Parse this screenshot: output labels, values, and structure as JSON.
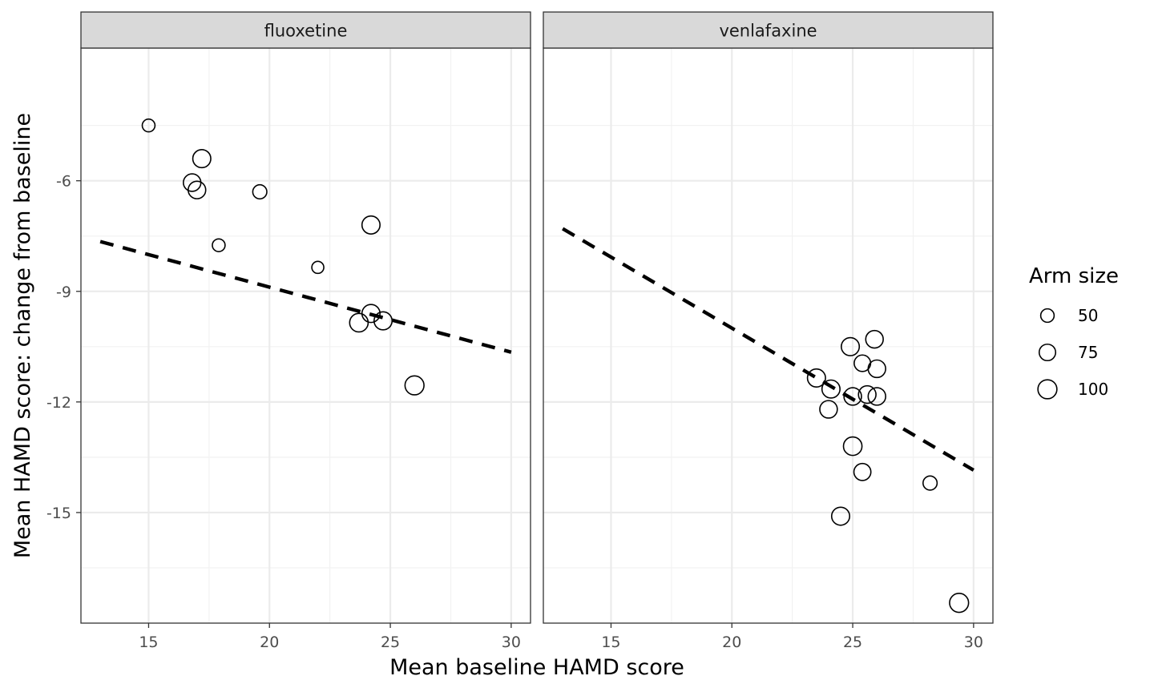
{
  "chart_data": {
    "type": "scatter",
    "xlabel": "Mean baseline HAMD score",
    "ylabel": "Mean HAMD score: change from baseline",
    "xlim": [
      12.2,
      30.8
    ],
    "ylim": [
      -18.0,
      -2.4
    ],
    "x_ticks": [
      15,
      20,
      25,
      30
    ],
    "y_ticks": [
      -6,
      -9,
      -12,
      -15
    ],
    "grid": true,
    "colors": {
      "panel_border": "#333333",
      "strip_fill": "#d9d9d9",
      "grid_major": "#ebebeb",
      "grid_minor": "#f2f2f2",
      "point_stroke": "#000000",
      "trend_line": "#000000"
    },
    "panels": [
      {
        "strip": "fluoxetine",
        "points": [
          {
            "x": 15.0,
            "y": -4.5,
            "size": 45
          },
          {
            "x": 17.2,
            "y": -5.4,
            "size": 90
          },
          {
            "x": 16.8,
            "y": -6.05,
            "size": 85
          },
          {
            "x": 17.0,
            "y": -6.25,
            "size": 85
          },
          {
            "x": 19.6,
            "y": -6.3,
            "size": 55
          },
          {
            "x": 17.9,
            "y": -7.75,
            "size": 45
          },
          {
            "x": 24.2,
            "y": -7.2,
            "size": 90
          },
          {
            "x": 22.0,
            "y": -8.35,
            "size": 40
          },
          {
            "x": 24.2,
            "y": -9.6,
            "size": 90
          },
          {
            "x": 23.7,
            "y": -9.85,
            "size": 95
          },
          {
            "x": 24.7,
            "y": -9.8,
            "size": 90
          },
          {
            "x": 26.0,
            "y": -11.55,
            "size": 100
          }
        ],
        "trend": {
          "x": [
            13,
            30
          ],
          "y": [
            -7.65,
            -10.65
          ]
        }
      },
      {
        "strip": "venlafaxine",
        "points": [
          {
            "x": 25.9,
            "y": -10.3,
            "size": 85
          },
          {
            "x": 24.9,
            "y": -10.5,
            "size": 90
          },
          {
            "x": 25.4,
            "y": -10.95,
            "size": 75
          },
          {
            "x": 26.0,
            "y": -11.1,
            "size": 85
          },
          {
            "x": 23.5,
            "y": -11.35,
            "size": 90
          },
          {
            "x": 24.1,
            "y": -11.65,
            "size": 90
          },
          {
            "x": 24.0,
            "y": -12.2,
            "size": 85
          },
          {
            "x": 25.0,
            "y": -11.85,
            "size": 85
          },
          {
            "x": 25.6,
            "y": -11.8,
            "size": 85
          },
          {
            "x": 26.0,
            "y": -11.85,
            "size": 85
          },
          {
            "x": 25.0,
            "y": -13.2,
            "size": 95
          },
          {
            "x": 25.4,
            "y": -13.9,
            "size": 80
          },
          {
            "x": 24.5,
            "y": -15.1,
            "size": 90
          },
          {
            "x": 28.2,
            "y": -14.2,
            "size": 55
          },
          {
            "x": 29.4,
            "y": -17.45,
            "size": 100
          }
        ],
        "trend": {
          "x": [
            13,
            30
          ],
          "y": [
            -7.3,
            -13.85
          ]
        }
      }
    ],
    "legend": {
      "title": "Arm size",
      "entries": [
        {
          "label": "50",
          "size": 50
        },
        {
          "label": "75",
          "size": 75
        },
        {
          "label": "100",
          "size": 100
        }
      ]
    }
  }
}
